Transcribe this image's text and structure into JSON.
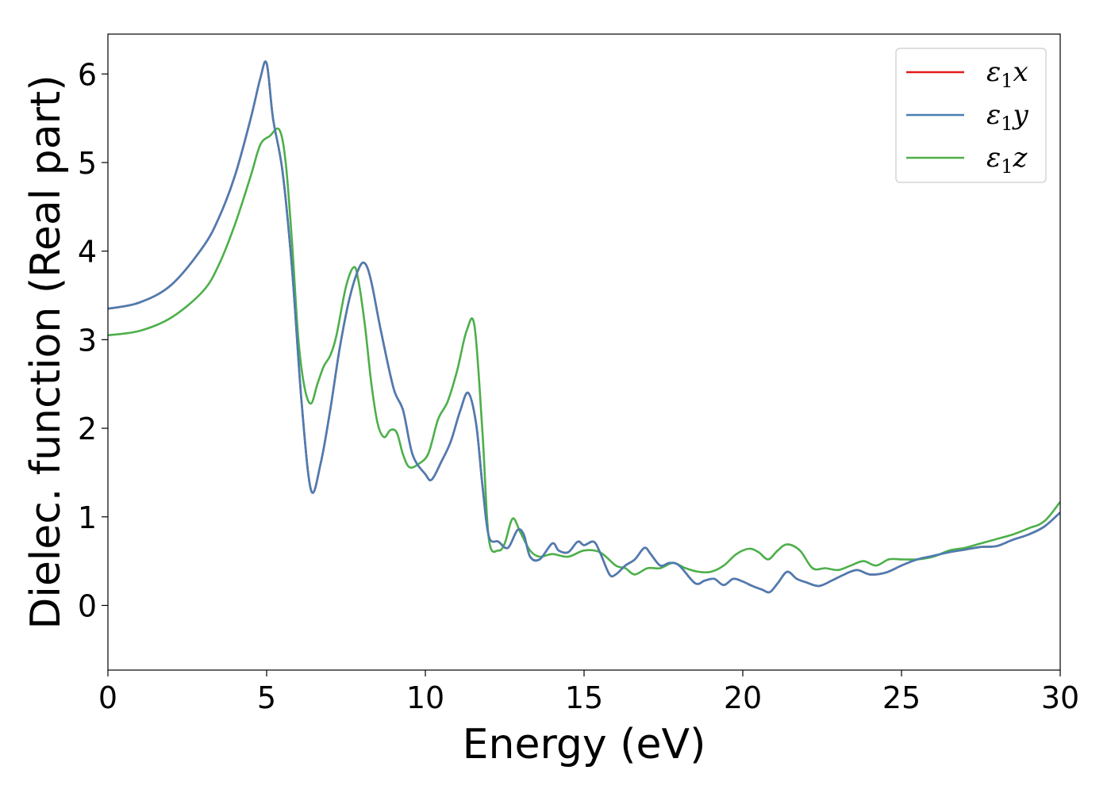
{
  "chart_data": {
    "type": "line",
    "xlabel": "Energy (eV)",
    "ylabel": "Dielec. function (Real part)",
    "xlim": [
      0,
      30
    ],
    "ylim": [
      -0.73,
      6.45
    ],
    "xticks": [
      0,
      5,
      10,
      15,
      20,
      25,
      30
    ],
    "yticks": [
      0,
      1,
      2,
      3,
      4,
      5,
      6
    ],
    "grid": false,
    "legend_position": "top-right",
    "series": [
      {
        "name": "ε1x",
        "legend": {
          "base": "ε",
          "sub": "1",
          "var": "x"
        },
        "color": "#e41a1c",
        "x": [
          0,
          1,
          2,
          3,
          3.5,
          4,
          4.5,
          4.8,
          5.0,
          5.2,
          5.5,
          5.8,
          6.1,
          6.4,
          6.7,
          7.0,
          7.3,
          7.6,
          7.9,
          8.1,
          8.3,
          8.6,
          9.0,
          9.3,
          9.6,
          10.0,
          10.2,
          10.5,
          10.8,
          11.1,
          11.35,
          11.6,
          11.8,
          12.0,
          12.3,
          12.6,
          12.9,
          13.1,
          13.3,
          13.6,
          14.0,
          14.2,
          14.5,
          14.8,
          15.0,
          15.3,
          15.5,
          15.8,
          16.0,
          16.3,
          16.6,
          16.9,
          17.1,
          17.4,
          17.7,
          18.0,
          18.5,
          18.8,
          19.1,
          19.4,
          19.7,
          20.0,
          20.3,
          20.6,
          20.85,
          21.1,
          21.4,
          21.7,
          22.0,
          22.4,
          22.8,
          23.2,
          23.6,
          24.0,
          24.5,
          25.0,
          25.5,
          26.0,
          26.5,
          27.0,
          27.5,
          28.0,
          28.5,
          29.0,
          29.5,
          30.0
        ],
        "y": [
          3.35,
          3.42,
          3.62,
          4.05,
          4.38,
          4.85,
          5.5,
          5.95,
          6.12,
          5.5,
          4.9,
          3.8,
          2.3,
          1.3,
          1.6,
          2.2,
          2.9,
          3.45,
          3.8,
          3.86,
          3.65,
          3.1,
          2.45,
          2.2,
          1.7,
          1.48,
          1.42,
          1.62,
          1.85,
          2.2,
          2.4,
          2.05,
          1.35,
          0.78,
          0.72,
          0.65,
          0.85,
          0.8,
          0.55,
          0.52,
          0.7,
          0.62,
          0.6,
          0.72,
          0.68,
          0.72,
          0.6,
          0.35,
          0.35,
          0.45,
          0.52,
          0.65,
          0.58,
          0.45,
          0.48,
          0.45,
          0.25,
          0.28,
          0.3,
          0.23,
          0.3,
          0.27,
          0.22,
          0.18,
          0.15,
          0.25,
          0.38,
          0.3,
          0.26,
          0.22,
          0.28,
          0.35,
          0.4,
          0.35,
          0.37,
          0.45,
          0.52,
          0.56,
          0.6,
          0.63,
          0.66,
          0.67,
          0.74,
          0.8,
          0.89,
          1.05
        ]
      },
      {
        "name": "ε1y",
        "legend": {
          "base": "ε",
          "sub": "1",
          "var": "y"
        },
        "color": "#4a7db3",
        "x": [
          0,
          1,
          2,
          3,
          3.5,
          4,
          4.5,
          4.8,
          5.0,
          5.2,
          5.5,
          5.8,
          6.1,
          6.4,
          6.7,
          7.0,
          7.3,
          7.6,
          7.9,
          8.1,
          8.3,
          8.6,
          9.0,
          9.3,
          9.6,
          10.0,
          10.2,
          10.5,
          10.8,
          11.1,
          11.35,
          11.6,
          11.8,
          12.0,
          12.3,
          12.6,
          12.9,
          13.1,
          13.3,
          13.6,
          14.0,
          14.2,
          14.5,
          14.8,
          15.0,
          15.3,
          15.5,
          15.8,
          16.0,
          16.3,
          16.6,
          16.9,
          17.1,
          17.4,
          17.7,
          18.0,
          18.5,
          18.8,
          19.1,
          19.4,
          19.7,
          20.0,
          20.3,
          20.6,
          20.85,
          21.1,
          21.4,
          21.7,
          22.0,
          22.4,
          22.8,
          23.2,
          23.6,
          24.0,
          24.5,
          25.0,
          25.5,
          26.0,
          26.5,
          27.0,
          27.5,
          28.0,
          28.5,
          29.0,
          29.5,
          30.0
        ],
        "y": [
          3.35,
          3.42,
          3.62,
          4.05,
          4.38,
          4.85,
          5.5,
          5.95,
          6.12,
          5.5,
          4.9,
          3.8,
          2.3,
          1.3,
          1.6,
          2.2,
          2.9,
          3.45,
          3.8,
          3.86,
          3.65,
          3.1,
          2.45,
          2.2,
          1.7,
          1.48,
          1.42,
          1.62,
          1.85,
          2.2,
          2.4,
          2.05,
          1.35,
          0.78,
          0.72,
          0.65,
          0.85,
          0.8,
          0.55,
          0.52,
          0.7,
          0.62,
          0.6,
          0.72,
          0.68,
          0.72,
          0.6,
          0.35,
          0.35,
          0.45,
          0.52,
          0.65,
          0.58,
          0.45,
          0.48,
          0.45,
          0.25,
          0.28,
          0.3,
          0.23,
          0.3,
          0.27,
          0.22,
          0.18,
          0.15,
          0.25,
          0.38,
          0.3,
          0.26,
          0.22,
          0.28,
          0.35,
          0.4,
          0.35,
          0.37,
          0.45,
          0.52,
          0.56,
          0.6,
          0.63,
          0.66,
          0.67,
          0.74,
          0.8,
          0.89,
          1.05
        ]
      },
      {
        "name": "ε1z",
        "legend": {
          "base": "ε",
          "sub": "1",
          "var": "z"
        },
        "color": "#4daf4a",
        "x": [
          0,
          1,
          2,
          3,
          3.5,
          4,
          4.5,
          4.8,
          5.1,
          5.4,
          5.6,
          5.8,
          6.0,
          6.2,
          6.4,
          6.6,
          6.8,
          7.0,
          7.2,
          7.5,
          7.75,
          7.9,
          8.1,
          8.3,
          8.5,
          8.7,
          8.9,
          9.1,
          9.3,
          9.5,
          9.8,
          10.1,
          10.4,
          10.7,
          11.0,
          11.3,
          11.55,
          11.8,
          12.0,
          12.3,
          12.5,
          12.75,
          13.0,
          13.3,
          13.6,
          14.0,
          14.5,
          15.0,
          15.5,
          16.0,
          16.3,
          16.6,
          17.0,
          17.4,
          17.8,
          18.2,
          18.6,
          19.0,
          19.4,
          19.8,
          20.2,
          20.5,
          20.8,
          21.1,
          21.4,
          21.8,
          22.2,
          22.6,
          23.0,
          23.4,
          23.8,
          24.2,
          24.6,
          25.0,
          25.5,
          26.0,
          26.5,
          27.0,
          27.5,
          28.0,
          28.5,
          29.0,
          29.5,
          30.0
        ],
        "y": [
          3.05,
          3.1,
          3.25,
          3.55,
          3.85,
          4.3,
          4.85,
          5.2,
          5.3,
          5.37,
          5.0,
          4.1,
          3.0,
          2.45,
          2.28,
          2.5,
          2.7,
          2.82,
          3.05,
          3.6,
          3.82,
          3.65,
          3.15,
          2.5,
          2.05,
          1.9,
          1.98,
          1.95,
          1.7,
          1.56,
          1.6,
          1.72,
          2.1,
          2.3,
          2.65,
          3.1,
          3.15,
          1.95,
          0.75,
          0.62,
          0.7,
          0.98,
          0.82,
          0.62,
          0.55,
          0.58,
          0.55,
          0.62,
          0.6,
          0.45,
          0.42,
          0.35,
          0.42,
          0.42,
          0.48,
          0.42,
          0.38,
          0.38,
          0.45,
          0.58,
          0.64,
          0.6,
          0.52,
          0.62,
          0.69,
          0.62,
          0.42,
          0.42,
          0.4,
          0.45,
          0.5,
          0.45,
          0.52,
          0.52,
          0.52,
          0.55,
          0.62,
          0.65,
          0.7,
          0.75,
          0.8,
          0.87,
          0.95,
          1.17
        ]
      }
    ]
  }
}
